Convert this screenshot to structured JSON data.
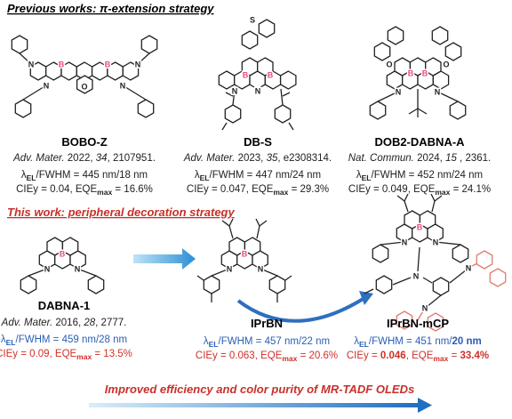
{
  "previous": {
    "heading": "Previous works: π-extension strategy",
    "compounds": [
      {
        "name": "BOBO-Z",
        "atoms": [
          "N",
          "B",
          "B",
          "N",
          "O",
          "N",
          "N"
        ],
        "citation": [
          "Adv. Mater.",
          " 2022, ",
          "34",
          ", 2107951."
        ],
        "lambda": [
          "λ",
          "EL",
          "/FWHM = 445 nm/18 nm"
        ],
        "cie": [
          "CIEy = 0.04, EQE",
          "max",
          " = 16.6%"
        ]
      },
      {
        "name": "DB-S",
        "atoms": [
          "S",
          "B",
          "B",
          "N",
          "N"
        ],
        "citation": [
          "Adv. Mater.",
          " 2023, ",
          "35",
          ", e2308314."
        ],
        "lambda": [
          "λ",
          "EL",
          "/FWHM = 447 nm/24 nm"
        ],
        "cie": [
          "CIEy = 0.047, EQE",
          "max",
          " = 29.3%"
        ]
      },
      {
        "name": "DOB2-DABNA-A",
        "atoms": [
          "O",
          "O",
          "B",
          "B",
          "N",
          "N"
        ],
        "citation": [
          "Nat. Commun.",
          " 2024, ",
          "15",
          " , 2361."
        ],
        "lambda": [
          "λ",
          "EL",
          "/FWHM = 452 nm/24 nm"
        ],
        "cie": [
          "CIEy = 0.049, EQE",
          "max",
          " = 24.1%"
        ]
      }
    ]
  },
  "this_work": {
    "heading": "This work: peripheral decoration strategy",
    "compounds": [
      {
        "name": "DABNA-1",
        "atoms": [
          "B",
          "N",
          "N"
        ],
        "citation": [
          "Adv. Mater.",
          " 2016, ",
          "28",
          ", 2777."
        ],
        "lambda": [
          "λ",
          "EL",
          "/FWHM = 459 nm/28 nm"
        ],
        "cie": [
          "CIEy = 0.09, EQE",
          "max",
          " = 13.5%"
        ]
      },
      {
        "name": "IPrBN",
        "atoms": [
          "B",
          "N",
          "N"
        ],
        "lambda": [
          "λ",
          "EL",
          "/FWHM = 457 nm/22 nm"
        ],
        "cie": [
          "CIEy = 0.063, EQE",
          "max",
          " = 20.6%"
        ]
      },
      {
        "name": "IPrBN-mCP",
        "atoms": [
          "B",
          "N",
          "N",
          "N",
          "N",
          "N"
        ],
        "lambda": [
          "λ",
          "EL",
          "/FWHM = 451 nm/",
          "20 nm"
        ],
        "cie": [
          "CIEy = ",
          "0.046",
          ", EQE",
          "max",
          " = ",
          "33.4%"
        ]
      }
    ]
  },
  "footer": "Improved efficiency and color purity of MR-TADF OLEDs"
}
